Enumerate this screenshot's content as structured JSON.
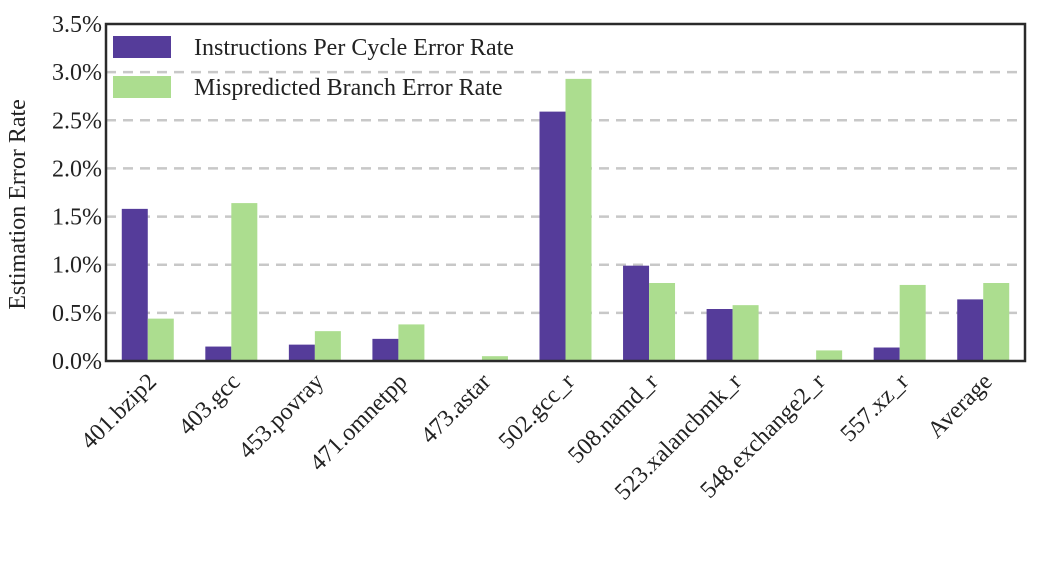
{
  "chart_data": {
    "type": "bar",
    "ylabel": "Estimation Error Rate",
    "xlabel": "",
    "ylim": [
      0,
      3.5
    ],
    "yticks": [
      "0.0%",
      "0.5%",
      "1.0%",
      "1.5%",
      "2.0%",
      "2.5%",
      "3.0%",
      "3.5%"
    ],
    "ytick_values": [
      0,
      0.5,
      1.0,
      1.5,
      2.0,
      2.5,
      3.0,
      3.5
    ],
    "grid": "horizontal-dashed",
    "legend_position": "top-left",
    "categories": [
      "401.bzip2",
      "403.gcc",
      "453.povray",
      "471.omnetpp",
      "473.astar",
      "502.gcc_r",
      "508.namd_r",
      "523.xalancbmk_r",
      "548.exchange2_r",
      "557.xz_r",
      "Average"
    ],
    "series": [
      {
        "name": "Instructions Per Cycle Error Rate",
        "color": "#553c9a",
        "values": [
          1.58,
          0.15,
          0.17,
          0.23,
          0.0,
          2.59,
          0.99,
          0.54,
          0.01,
          0.14,
          0.64
        ]
      },
      {
        "name": "Mispredicted Branch Error Rate",
        "color": "#acdd8f",
        "values": [
          0.44,
          1.64,
          0.31,
          0.38,
          0.05,
          2.93,
          0.81,
          0.58,
          0.11,
          0.79,
          0.81
        ]
      }
    ]
  }
}
